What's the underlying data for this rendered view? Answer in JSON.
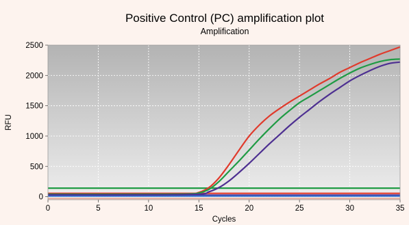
{
  "chart_data": {
    "type": "line",
    "title": "Positive Control (PC) amplification plot",
    "subtitle": "Amplification",
    "xlabel": "Cycles",
    "ylabel": "RFU",
    "xlim": [
      0,
      35
    ],
    "ylim": [
      -50,
      2500
    ],
    "xticks": [
      0,
      5,
      10,
      15,
      20,
      25,
      30,
      35
    ],
    "yticks": [
      0,
      500,
      1000,
      1500,
      2000,
      2500
    ],
    "grid": true,
    "plot_background": "gradient grey",
    "series": [
      {
        "color": "#e03a2c",
        "x": [
          0,
          10,
          14,
          15,
          16,
          17,
          18,
          19,
          20,
          21,
          22,
          23,
          24,
          25,
          26,
          27,
          28,
          29,
          30,
          31,
          32,
          33,
          34,
          35
        ],
        "y": [
          40,
          40,
          45,
          70,
          150,
          310,
          530,
          770,
          1000,
          1180,
          1330,
          1450,
          1560,
          1660,
          1760,
          1860,
          1950,
          2050,
          2130,
          2210,
          2280,
          2350,
          2410,
          2470
        ]
      },
      {
        "color": "#1f9b44",
        "x": [
          0,
          10,
          14,
          15,
          16,
          17,
          18,
          19,
          20,
          21,
          22,
          23,
          24,
          25,
          26,
          27,
          28,
          29,
          30,
          31,
          32,
          33,
          34,
          35
        ],
        "y": [
          40,
          40,
          45,
          60,
          120,
          250,
          420,
          590,
          770,
          950,
          1120,
          1280,
          1420,
          1550,
          1650,
          1750,
          1850,
          1950,
          2040,
          2120,
          2180,
          2230,
          2260,
          2270
        ]
      },
      {
        "color": "#4d2f91",
        "x": [
          0,
          10,
          15,
          16,
          17,
          18,
          19,
          20,
          21,
          22,
          23,
          24,
          25,
          26,
          27,
          28,
          29,
          30,
          31,
          32,
          33,
          34,
          35
        ],
        "y": [
          30,
          30,
          40,
          80,
          150,
          260,
          400,
          550,
          710,
          870,
          1020,
          1170,
          1310,
          1440,
          1570,
          1690,
          1800,
          1910,
          2000,
          2080,
          2150,
          2200,
          2220
        ]
      }
    ],
    "threshold_lines": [
      {
        "color": "#1f9b44",
        "y": 140
      },
      {
        "color": "#e03a2c",
        "y": 55
      },
      {
        "color": "#4d2f91",
        "y": 25
      },
      {
        "color": "#2f6fd0",
        "y": 10
      },
      {
        "color": "#e8b0a0",
        "y": -30
      }
    ]
  }
}
